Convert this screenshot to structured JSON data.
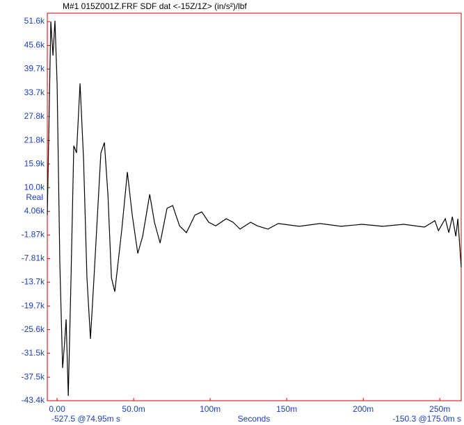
{
  "chart_data": {
    "type": "line",
    "title": "M#1 015Z001Z.FRF SDF dat <-15Z/1Z> (in/s²)/lbf",
    "y_label": "Real",
    "x_label": "Seconds",
    "annotations": [
      "-527.5 @74.95m s",
      "-150.3 @175.0m s"
    ],
    "series": [
      {
        "name": "015Z001Z",
        "color": "#000000",
        "x": [
          -0.0064,
          -0.0055,
          -0.0041,
          -0.0027,
          -0.0014,
          0,
          0.0018,
          0.0036,
          0.005,
          0.0059,
          0.0073,
          0.0091,
          0.0109,
          0.0127,
          0.015,
          0.0173,
          0.0195,
          0.0218,
          0.0241,
          0.0286,
          0.0309,
          0.0332,
          0.0355,
          0.0377,
          0.0423,
          0.0459,
          0.0491,
          0.0527,
          0.0559,
          0.0605,
          0.0636,
          0.0673,
          0.0718,
          0.0755,
          0.08,
          0.0845,
          0.09,
          0.0945,
          0.0991,
          0.1036,
          0.1105,
          0.115,
          0.1195,
          0.1264,
          0.1309,
          0.1377,
          0.1445,
          0.1582,
          0.1718,
          0.1855,
          0.1991,
          0.2127,
          0.2264,
          0.24,
          0.2468,
          0.2491,
          0.2536,
          0.2559,
          0.2582,
          0.2605,
          0.2618,
          0.264
        ],
        "values": [
          3100,
          22200,
          51600,
          43100,
          51800,
          36100,
          -9100,
          -35200,
          -28300,
          -23000,
          -42200,
          -12600,
          20500,
          18700,
          36100,
          17000,
          -12600,
          -27900,
          -12600,
          18700,
          21300,
          8300,
          -12600,
          -16100,
          -400,
          13900,
          3100,
          -6500,
          -2200,
          8300,
          1300,
          -3900,
          4800,
          5500,
          400,
          -1300,
          3100,
          3900,
          1300,
          400,
          2200,
          1300,
          -400,
          1300,
          400,
          -400,
          1000,
          300,
          1000,
          300,
          800,
          300,
          800,
          100,
          1700,
          -800,
          2200,
          -1300,
          2700,
          -2200,
          2200,
          -10000
        ]
      }
    ],
    "xlim": [
      -0.0064,
      0.264
    ],
    "ylim": [
      -43400,
      53700
    ],
    "xticks": [
      {
        "value": 0,
        "label": "0.00"
      },
      {
        "value": 0.05,
        "label": "50.0m"
      },
      {
        "value": 0.1,
        "label": "100m"
      },
      {
        "value": 0.15,
        "label": "150m"
      },
      {
        "value": 0.2,
        "label": "200m"
      },
      {
        "value": 0.25,
        "label": "250m"
      }
    ],
    "yticks": [
      {
        "value": 51600,
        "label": "51.6k"
      },
      {
        "value": 45600,
        "label": "45.6k"
      },
      {
        "value": 39700,
        "label": "39.7k"
      },
      {
        "value": 33700,
        "label": "33.7k"
      },
      {
        "value": 27800,
        "label": "27.8k"
      },
      {
        "value": 21800,
        "label": "21.8k"
      },
      {
        "value": 15900,
        "label": "15.9k"
      },
      {
        "value": 10000,
        "label": "10.0k"
      },
      {
        "value": 4060,
        "label": "4.06k"
      },
      {
        "value": -1870,
        "label": "-1.87k"
      },
      {
        "value": -7810,
        "label": "-7.81k"
      },
      {
        "value": -13700,
        "label": "-13.7k"
      },
      {
        "value": -19700,
        "label": "-19.7k"
      },
      {
        "value": -25600,
        "label": "-25.6k"
      },
      {
        "value": -31500,
        "label": "-31.5k"
      },
      {
        "value": -37500,
        "label": "-37.5k"
      },
      {
        "value": -43400,
        "label": "-43.4k"
      }
    ],
    "frame_color": "#d00000"
  }
}
